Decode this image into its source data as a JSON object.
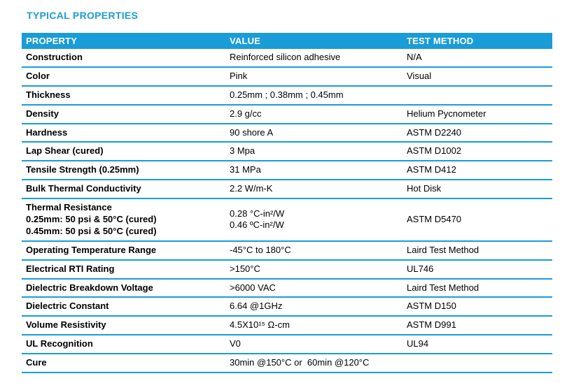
{
  "title": "TYPICAL PROPERTIES",
  "colors": {
    "accent": "#1A9CD8",
    "header_text": "#FFFFFF",
    "body_text": "#000000",
    "background": "#FFFFFF"
  },
  "table": {
    "columns": [
      "PROPERTY",
      "VALUE",
      "TEST METHOD"
    ],
    "rows": [
      {
        "property": "Construction",
        "value": "Reinforced silicon adhesive",
        "test_method": "N/A"
      },
      {
        "property": "Color",
        "value": "Pink",
        "test_method": "Visual"
      },
      {
        "property": "Thickness",
        "value": "0.25mm ; 0.38mm ; 0.45mm",
        "test_method": ""
      },
      {
        "property": "Density",
        "value": "2.9 g/cc",
        "test_method": "Helium Pycnometer"
      },
      {
        "property": "Hardness",
        "value": "90 shore A",
        "test_method": "ASTM D2240"
      },
      {
        "property": "Lap Shear (cured)",
        "value": "3 Mpa",
        "test_method": "ASTM D1002"
      },
      {
        "property": "Tensile Strength (0.25mm)",
        "value": "31 MPa",
        "test_method": "ASTM D412"
      },
      {
        "property": "Bulk Thermal Conductivity",
        "value": "2.2 W/m-K",
        "test_method": "Hot Disk"
      },
      {
        "property": "Thermal Resistance\n0.25mm: 50 psi & 50°C (cured)\n0.45mm: 50 psi & 50°C (cured)",
        "value": "0.28 °C-in²/W\n0.46 ºC-in²/W",
        "test_method": "ASTM D5470"
      },
      {
        "property": "Operating Temperature Range",
        "value": "-45°C to 180°C",
        "test_method": "Laird Test Method"
      },
      {
        "property": "Electrical RTI Rating",
        "value": ">150°C",
        "test_method": "UL746"
      },
      {
        "property": "Dielectric Breakdown Voltage",
        "value": ">6000 VAC",
        "test_method": "Laird Test Method"
      },
      {
        "property": "Dielectric Constant",
        "value": "6.64 @1GHz",
        "test_method": "ASTM D150"
      },
      {
        "property": "Volume Resistivity",
        "value": "4.5X10¹⁵ Ω-cm",
        "test_method": "ASTM D991"
      },
      {
        "property": "UL Recognition",
        "value": "V0",
        "test_method": "UL94"
      },
      {
        "property": "Cure",
        "value": "30min @150°C or  60min @120°C",
        "test_method": ""
      }
    ]
  }
}
